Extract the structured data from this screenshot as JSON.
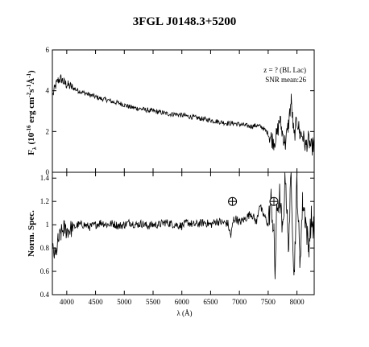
{
  "chart_data": [
    {
      "type": "line",
      "title": "3FGL J0148.3+5200",
      "ylabel": "F_λ (10^-16 erg cm^-2 s^-1 Å^-1)",
      "ylabel_main": "F",
      "ylabel_sub": "λ",
      "ylabel_rest": "(10",
      "ylabel_exp1": "-16",
      "ylabel_unit1": " erg cm",
      "ylabel_exp2": "-2",
      "ylabel_unit2": "s",
      "ylabel_exp3": "-1",
      "ylabel_unit3": "Å",
      "ylabel_exp4": "-1",
      "ylabel_close": ")",
      "xlim": [
        3750,
        8300
      ],
      "ylim": [
        0,
        6
      ],
      "yticks": [
        "0",
        "2",
        "4",
        "6"
      ],
      "annotations": [
        "z = ? (BL Lac)",
        "SNR mean:26"
      ],
      "series": [
        {
          "x": [
            3760,
            3800,
            3850,
            3900,
            3950,
            4000,
            4100,
            4200,
            4300,
            4400,
            4500,
            4600,
            4700,
            4800,
            4900,
            5000,
            5100,
            5200,
            5300,
            5400,
            5500,
            5600,
            5700,
            5800,
            5900,
            6000,
            6100,
            6200,
            6300,
            6400,
            6500,
            6600,
            6700,
            6800,
            6900,
            7000,
            7100,
            7200,
            7300,
            7400,
            7500,
            7550,
            7600,
            7650,
            7700,
            7750,
            7800,
            7850,
            7900,
            7950,
            8000,
            8050,
            8100,
            8150,
            8200,
            8250,
            8300
          ],
          "y": [
            3.8,
            4.2,
            4.5,
            4.6,
            4.4,
            4.3,
            4.15,
            4.0,
            3.9,
            3.8,
            3.7,
            3.6,
            3.55,
            3.45,
            3.4,
            3.3,
            3.2,
            3.15,
            3.1,
            3.05,
            3.0,
            2.95,
            2.9,
            2.85,
            2.85,
            2.8,
            2.75,
            2.7,
            2.65,
            2.6,
            2.55,
            2.5,
            2.45,
            2.4,
            2.4,
            2.35,
            2.3,
            2.25,
            2.3,
            2.2,
            1.9,
            1.7,
            1.5,
            1.8,
            2.6,
            1.9,
            1.4,
            2.3,
            3.5,
            1.7,
            2.6,
            1.9,
            1.8,
            1.3,
            1.6,
            1.2,
            1.4
          ]
        }
      ]
    },
    {
      "type": "line",
      "xlabel": "λ (Å)",
      "ylabel": "Norm. Spec.",
      "xlim": [
        3750,
        8300
      ],
      "ylim": [
        0.4,
        1.45
      ],
      "xticks": [
        "4000",
        "4500",
        "5000",
        "5500",
        "6000",
        "6500",
        "7000",
        "7500",
        "8000"
      ],
      "yticks": [
        "0.4",
        "0.6",
        "0.8",
        "1",
        "1.2",
        "1.4"
      ],
      "telluric_markers_x": [
        6880,
        7600
      ],
      "series": [
        {
          "x": [
            3760,
            3800,
            3850,
            3900,
            3950,
            4000,
            4100,
            4200,
            4300,
            4400,
            4500,
            4600,
            4700,
            4800,
            4900,
            5000,
            5100,
            5200,
            5300,
            5400,
            5500,
            5600,
            5700,
            5800,
            5900,
            6000,
            6100,
            6200,
            6300,
            6400,
            6500,
            6600,
            6700,
            6800,
            6850,
            6900,
            6950,
            7000,
            7100,
            7200,
            7300,
            7350,
            7400,
            7450,
            7500,
            7550,
            7600,
            7620,
            7650,
            7700,
            7750,
            7800,
            7850,
            7900,
            7950,
            8000,
            8050,
            8100,
            8150,
            8200,
            8250,
            8300
          ],
          "y": [
            0.78,
            0.72,
            0.86,
            0.92,
            0.97,
            0.95,
            0.97,
            1.0,
            1.0,
            0.98,
            1.0,
            1.02,
            1.0,
            1.01,
            0.99,
            1.0,
            1.02,
            1.0,
            1.01,
            0.99,
            1.0,
            1.0,
            1.02,
            1.01,
            1.0,
            0.99,
            1.02,
            1.0,
            1.01,
            1.02,
            1.0,
            1.03,
            1.02,
            1.01,
            0.9,
            1.05,
            1.05,
            1.02,
            1.05,
            1.1,
            1.02,
            1.18,
            1.1,
            1.06,
            1.0,
            1.22,
            0.9,
            0.58,
            1.12,
            1.25,
            0.92,
            1.45,
            0.8,
            1.42,
            0.55,
            1.38,
            0.68,
            1.2,
            1.05,
            0.8,
            1.05,
            0.95
          ]
        }
      ]
    }
  ]
}
